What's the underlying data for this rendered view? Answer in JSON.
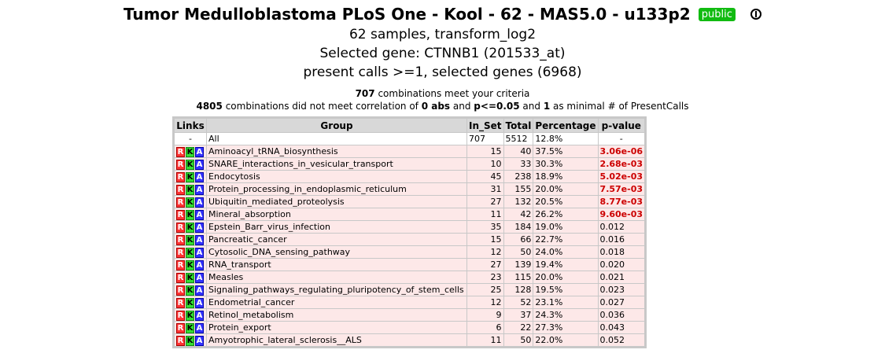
{
  "header": {
    "title": "Tumor Medulloblastoma PLoS One - Kool - 62 - MAS5.0 - u133p2",
    "badge": "public",
    "samples_line": "62 samples, transform_log2",
    "gene_line": "Selected gene: CTNNB1 (201533_at)",
    "calls_line": "present calls >=1, selected genes (6968)"
  },
  "stats": {
    "meet_count": "707",
    "meet_text": " combinations meet your criteria",
    "fail_count": "4805",
    "fail_text1": " combinations did not meet correlation of ",
    "corr": "0 abs",
    "and_text": " and ",
    "pval": "p<=0.05",
    "and_text2": " and ",
    "min_calls": "1",
    "fail_text2": " as minimal # of PresentCalls"
  },
  "table": {
    "headers": {
      "links": "Links",
      "group": "Group",
      "in_set": "In_Set",
      "total": "Total",
      "percentage": "Percentage",
      "pvalue": "p-value"
    },
    "link_labels": {
      "r": "R",
      "k": "K",
      "a": "A"
    },
    "all_row": {
      "links": "-",
      "group": "All",
      "in_set": "707",
      "total": "5512",
      "percentage": "12.8%",
      "pvalue": "-"
    },
    "rows": [
      {
        "group": "Aminoacyl_tRNA_biosynthesis",
        "in_set": "15",
        "total": "40",
        "percentage": "37.5%",
        "pvalue": "3.06e-06",
        "significant": true
      },
      {
        "group": "SNARE_interactions_in_vesicular_transport",
        "in_set": "10",
        "total": "33",
        "percentage": "30.3%",
        "pvalue": "2.68e-03",
        "significant": true
      },
      {
        "group": "Endocytosis",
        "in_set": "45",
        "total": "238",
        "percentage": "18.9%",
        "pvalue": "5.02e-03",
        "significant": true
      },
      {
        "group": "Protein_processing_in_endoplasmic_reticulum",
        "in_set": "31",
        "total": "155",
        "percentage": "20.0%",
        "pvalue": "7.57e-03",
        "significant": true
      },
      {
        "group": "Ubiquitin_mediated_proteolysis",
        "in_set": "27",
        "total": "132",
        "percentage": "20.5%",
        "pvalue": "8.77e-03",
        "significant": true
      },
      {
        "group": "Mineral_absorption",
        "in_set": "11",
        "total": "42",
        "percentage": "26.2%",
        "pvalue": "9.60e-03",
        "significant": true
      },
      {
        "group": "Epstein_Barr_virus_infection",
        "in_set": "35",
        "total": "184",
        "percentage": "19.0%",
        "pvalue": "0.012",
        "significant": false
      },
      {
        "group": "Pancreatic_cancer",
        "in_set": "15",
        "total": "66",
        "percentage": "22.7%",
        "pvalue": "0.016",
        "significant": false
      },
      {
        "group": "Cytosolic_DNA_sensing_pathway",
        "in_set": "12",
        "total": "50",
        "percentage": "24.0%",
        "pvalue": "0.018",
        "significant": false
      },
      {
        "group": "RNA_transport",
        "in_set": "27",
        "total": "139",
        "percentage": "19.4%",
        "pvalue": "0.020",
        "significant": false
      },
      {
        "group": "Measles",
        "in_set": "23",
        "total": "115",
        "percentage": "20.0%",
        "pvalue": "0.021",
        "significant": false
      },
      {
        "group": "Signaling_pathways_regulating_pluripotency_of_stem_cells",
        "in_set": "25",
        "total": "128",
        "percentage": "19.5%",
        "pvalue": "0.023",
        "significant": false
      },
      {
        "group": "Endometrial_cancer",
        "in_set": "12",
        "total": "52",
        "percentage": "23.1%",
        "pvalue": "0.027",
        "significant": false
      },
      {
        "group": "Retinol_metabolism",
        "in_set": "9",
        "total": "37",
        "percentage": "24.3%",
        "pvalue": "0.036",
        "significant": false
      },
      {
        "group": "Protein_export",
        "in_set": "6",
        "total": "22",
        "percentage": "27.3%",
        "pvalue": "0.043",
        "significant": false
      },
      {
        "group": "Amyotrophic_lateral_sclerosis__ALS",
        "in_set": "11",
        "total": "50",
        "percentage": "22.0%",
        "pvalue": "0.052",
        "significant": false
      }
    ]
  },
  "colors": {
    "badge_bg": "#11bb11",
    "row_bg": "#fde8e8",
    "header_bg": "#d8d8d8",
    "significant": "#cc0000"
  }
}
